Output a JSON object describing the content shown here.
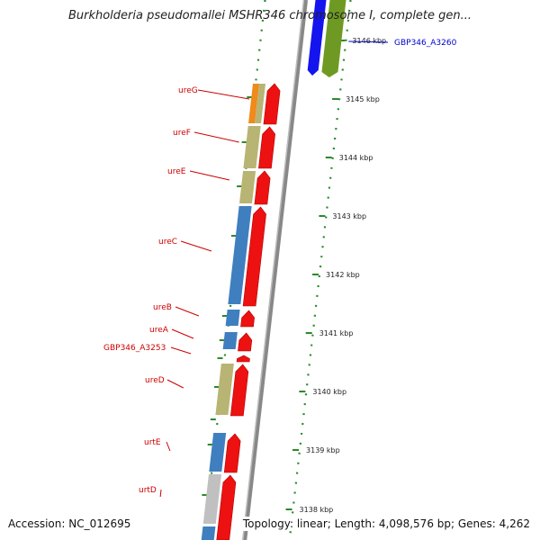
{
  "title": "Burkholderia pseudomallei MSHR346 chromosome I, complete gen...",
  "footer": {
    "accession": "Accession: NC_012695",
    "topology": "Topology: linear; Length: 4,098,576 bp; Genes: 4,262"
  },
  "ticks": [
    "3146 kbp",
    "3145 kbp",
    "3144 kbp",
    "3143 kbp",
    "3142 kbp",
    "3141 kbp",
    "3140 kbp",
    "3139 kbp",
    "3138 kbp"
  ],
  "gene_labels": [
    "GBP346_A3260",
    "ureG",
    "ureF",
    "ureE",
    "ureC",
    "ureB",
    "ureA",
    "GBP346_A3253",
    "ureD",
    "urtE",
    "urtD"
  ],
  "colors": {
    "forward_gene": "#ee1111",
    "cog_blue": "#3f7fbf",
    "cog_khaki": "#b8b473",
    "cog_orange": "#f08a1a",
    "cog_gray": "#c0c0c0",
    "ruler_dots": "#2a8a2a",
    "backbone": "#888888",
    "label_red": "#cc0000",
    "label_blue": "#0000cc"
  }
}
